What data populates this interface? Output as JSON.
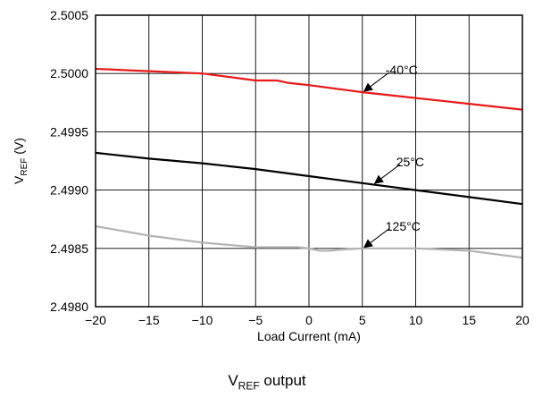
{
  "chart_data": {
    "type": "line",
    "title": "",
    "xlabel": "Load Current (mA)",
    "ylabel": {
      "main": "V",
      "sub": "REF",
      "suffix": " (V)"
    },
    "xlim": [
      -20,
      20
    ],
    "ylim": [
      2.498,
      2.5005
    ],
    "xticks": [
      -20,
      -15,
      -10,
      -5,
      0,
      5,
      10,
      15,
      20
    ],
    "xtick_labels": [
      "−20",
      "−15",
      "−10",
      "−5",
      "0",
      "5",
      "10",
      "15",
      "20"
    ],
    "yticks": [
      2.498,
      2.4985,
      2.499,
      2.4995,
      2.5,
      2.5005
    ],
    "ytick_labels": [
      "2.4980",
      "2.4985",
      "2.4990",
      "2.4995",
      "2.5000",
      "2.5005"
    ],
    "grid": true,
    "series": [
      {
        "name": "-40°C",
        "color": "#e8191a",
        "x": [
          -20,
          -15,
          -10,
          -5,
          -3,
          -2,
          0,
          5,
          10,
          15,
          20
        ],
        "y": [
          2.50004,
          2.50002,
          2.5,
          2.49994,
          2.49994,
          2.49992,
          2.4999,
          2.49984,
          2.49979,
          2.49974,
          2.49969
        ],
        "label_at": [
          5,
          2.49984
        ]
      },
      {
        "name": "25°C",
        "color": "#000000",
        "x": [
          -20,
          -15,
          -10,
          -5,
          0,
          5,
          10,
          15,
          20
        ],
        "y": [
          2.49932,
          2.49927,
          2.49923,
          2.49918,
          2.49912,
          2.49906,
          2.499,
          2.49894,
          2.49888
        ],
        "label_at": [
          6,
          2.49905
        ]
      },
      {
        "name": "125°C",
        "color": "#b3b3b3",
        "x": [
          -20,
          -15,
          -10,
          -5,
          -3,
          -1,
          0,
          1,
          2,
          3,
          5,
          10,
          15,
          20
        ],
        "y": [
          2.49869,
          2.49861,
          2.49855,
          2.49851,
          2.49851,
          2.49851,
          2.4985,
          2.49848,
          2.49848,
          2.49849,
          2.4985,
          2.4985,
          2.49848,
          2.49842
        ],
        "label_at": [
          5,
          2.4985
        ]
      }
    ]
  },
  "caption": {
    "main": "V",
    "sub": "REF",
    "suffix": " output"
  }
}
